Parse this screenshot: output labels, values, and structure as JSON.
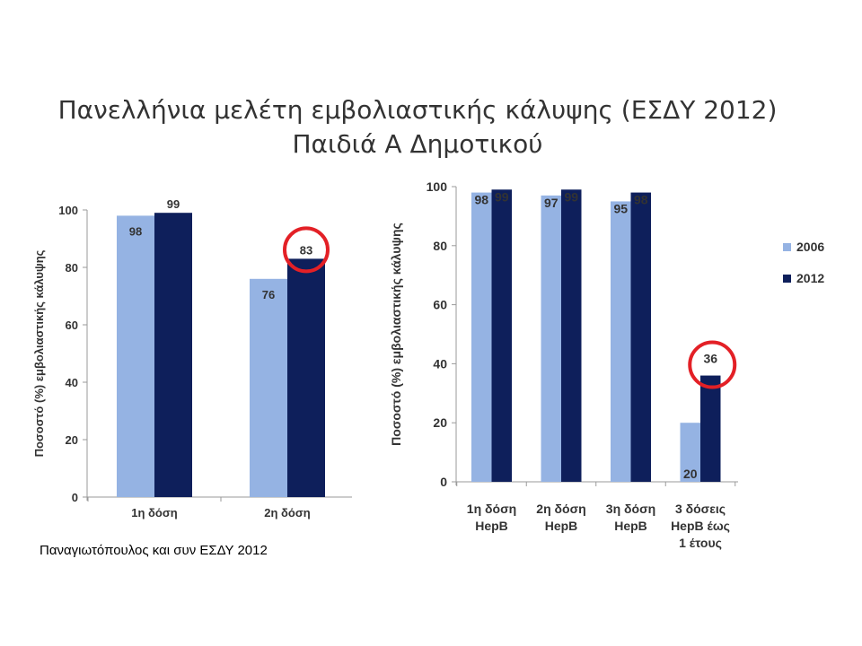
{
  "slide": {
    "title_line1": "Πανελλήνια μελέτη εμβολιαστικής κάλυψης  (ΕΣΔΥ 2012)",
    "title_line2": "Παιδιά Α Δημοτικού",
    "source": "Παναγιωτόπουλος και συν ΕΣΔΥ 2012"
  },
  "colors": {
    "series_2006": "#95b3e3",
    "series_2012": "#0e1f5b",
    "highlight_circle": "#e32026",
    "axis": "#9a9a9a"
  },
  "chart_data": [
    {
      "type": "bar",
      "categories": [
        "1η δόση",
        "2η δόση"
      ],
      "series": [
        {
          "name": "2006",
          "values": [
            98,
            76
          ]
        },
        {
          "name": "2012",
          "values": [
            99,
            83
          ]
        }
      ],
      "ylabel": "Ποσοστό (%) εμβολιαστικής κάλυψης",
      "ylim": [
        0,
        100
      ],
      "yticks": [
        0,
        20,
        40,
        60,
        80,
        100
      ],
      "highlighted": {
        "category": "2η δόση",
        "series": "2012"
      },
      "legend": "none"
    },
    {
      "type": "bar",
      "categories": [
        [
          "1η δόση",
          "HepB"
        ],
        [
          "2η δόση",
          "HepB"
        ],
        [
          "3η δόση",
          "HepB"
        ],
        [
          "3 δόσεις",
          "HepB έως",
          "1 έτους"
        ]
      ],
      "series": [
        {
          "name": "2006",
          "values": [
            98,
            97,
            95,
            20
          ]
        },
        {
          "name": "2012",
          "values": [
            99,
            99,
            98,
            36
          ]
        }
      ],
      "ylabel": "Ποσοστό (%) εμβολιαστικής κάλυψης",
      "ylim": [
        0,
        100
      ],
      "yticks": [
        0,
        20,
        40,
        60,
        80,
        100
      ],
      "highlighted": {
        "category": "3 δόσεις HepB έως 1 έτους",
        "series": "2012"
      },
      "legend": "right"
    }
  ]
}
